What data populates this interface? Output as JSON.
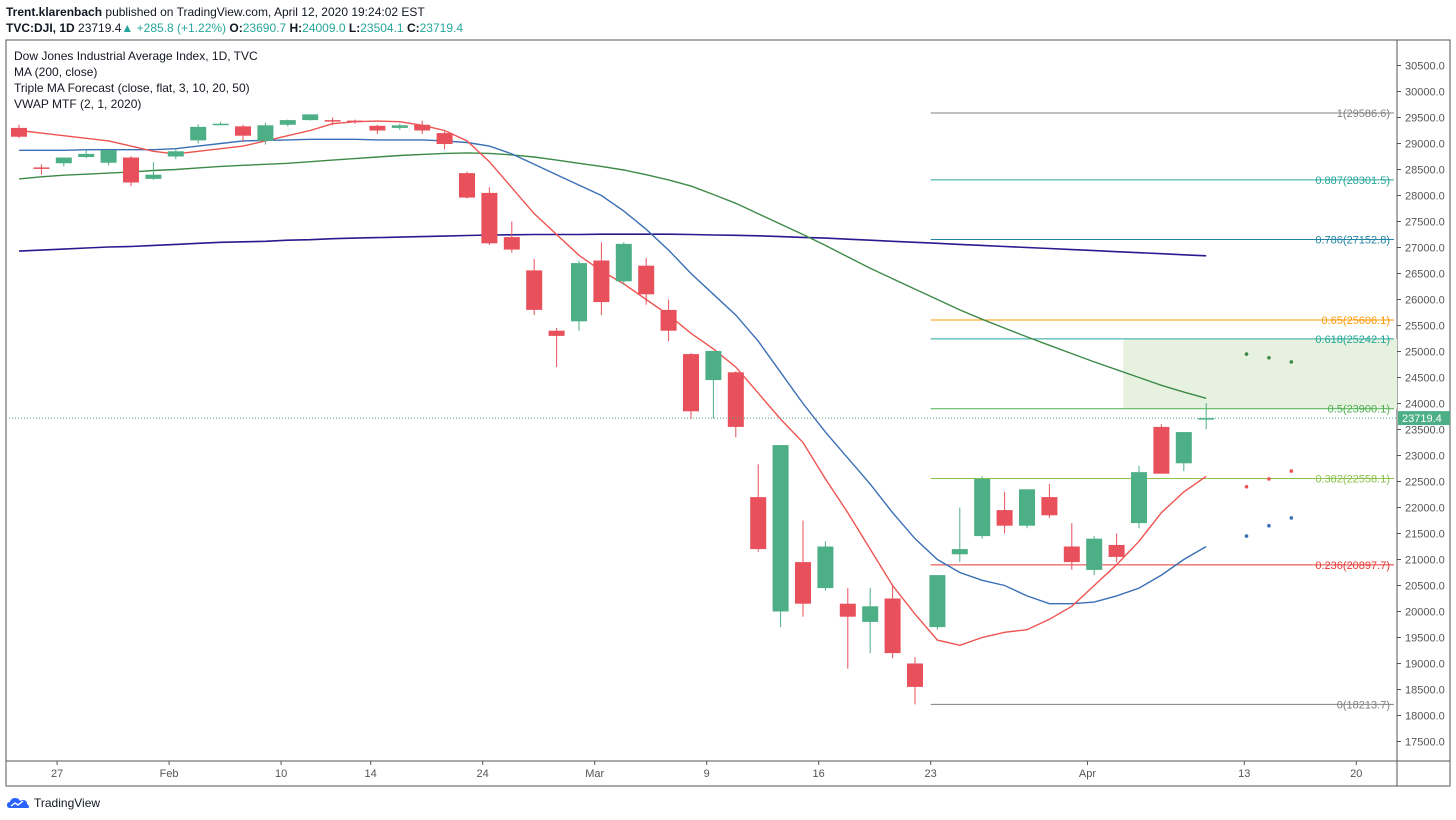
{
  "header": {
    "author": "Trent.klarenbach",
    "published": "published on TradingView.com, April 12, 2020 19:24:02 EST"
  },
  "subheader": {
    "symbol": "TVC:DJI, 1D",
    "last": "23719.4",
    "change": "+285.8 (+1.22%)",
    "o_label": "O:",
    "o": "23690.7",
    "h_label": "H:",
    "h": "24009.0",
    "l_label": "L:",
    "l": "23504.1",
    "c_label": "C:",
    "c": "23719.4"
  },
  "footer": {
    "brand": "TradingView"
  },
  "colors": {
    "up": "#4caf85",
    "down": "#e8505b",
    "ma200": "#2a1a8f",
    "ma_fast": "#ef5350",
    "ma_mid": "#3a6fb5",
    "ma_slow": "#3d8a47",
    "grid_border": "#555555",
    "text": "#555555",
    "last_price": "#4caf85"
  },
  "chart_data": {
    "type": "candlestick",
    "title": "Dow Jones Industrial Average Index, 1D, TVC",
    "indicators": [
      "MA (200, close)",
      "Triple MA Forecast (close, flat, 3, 10, 20, 50)",
      "VWAP MTF (2, 1, 2020)"
    ],
    "ylim": [
      17000,
      30900
    ],
    "y_ticks": [
      17500,
      18000,
      18500,
      19000,
      19500,
      20000,
      20500,
      21000,
      21500,
      22000,
      22500,
      23000,
      23500,
      24000,
      24500,
      25000,
      25500,
      26000,
      26500,
      27000,
      27500,
      28000,
      28500,
      29000,
      29500,
      30000,
      30500
    ],
    "x_ticks": [
      {
        "label": "27",
        "i": 1.7
      },
      {
        "label": "Feb",
        "i": 6.7
      },
      {
        "label": "10",
        "i": 11.7
      },
      {
        "label": "14",
        "i": 15.7
      },
      {
        "label": "24",
        "i": 20.7
      },
      {
        "label": "Mar",
        "i": 25.7
      },
      {
        "label": "9",
        "i": 30.7
      },
      {
        "label": "16",
        "i": 35.7
      },
      {
        "label": "23",
        "i": 40.7
      },
      {
        "label": "Apr",
        "i": 47.7
      },
      {
        "label": "13",
        "i": 54.7
      },
      {
        "label": "20",
        "i": 59.7
      }
    ],
    "candles": [
      {
        "o": 29300,
        "h": 29360,
        "l": 29100,
        "c": 29130
      },
      {
        "o": 28540,
        "h": 28600,
        "l": 28400,
        "c": 28530
      },
      {
        "o": 28620,
        "h": 28730,
        "l": 28560,
        "c": 28730
      },
      {
        "o": 28740,
        "h": 28880,
        "l": 28720,
        "c": 28800
      },
      {
        "o": 28630,
        "h": 28900,
        "l": 28580,
        "c": 28870
      },
      {
        "o": 28730,
        "h": 28760,
        "l": 28180,
        "c": 28250
      },
      {
        "o": 28320,
        "h": 28640,
        "l": 28300,
        "c": 28400
      },
      {
        "o": 28750,
        "h": 28900,
        "l": 28700,
        "c": 28850
      },
      {
        "o": 29060,
        "h": 29370,
        "l": 29000,
        "c": 29320
      },
      {
        "o": 29380,
        "h": 29420,
        "l": 29350,
        "c": 29380
      },
      {
        "o": 29330,
        "h": 29360,
        "l": 29030,
        "c": 29150
      },
      {
        "o": 29050,
        "h": 29400,
        "l": 28980,
        "c": 29350
      },
      {
        "o": 29360,
        "h": 29460,
        "l": 29330,
        "c": 29450
      },
      {
        "o": 29450,
        "h": 29560,
        "l": 29440,
        "c": 29560
      },
      {
        "o": 29450,
        "h": 29500,
        "l": 29350,
        "c": 29440
      },
      {
        "o": 29440,
        "h": 29460,
        "l": 29380,
        "c": 29420
      },
      {
        "o": 29340,
        "h": 29360,
        "l": 29180,
        "c": 29250
      },
      {
        "o": 29300,
        "h": 29380,
        "l": 29260,
        "c": 29350
      },
      {
        "o": 29360,
        "h": 29440,
        "l": 29180,
        "c": 29250
      },
      {
        "o": 29200,
        "h": 29230,
        "l": 28890,
        "c": 28990
      },
      {
        "o": 28430,
        "h": 28460,
        "l": 27940,
        "c": 27960
      },
      {
        "o": 28050,
        "h": 28160,
        "l": 27050,
        "c": 27080
      },
      {
        "o": 27200,
        "h": 27500,
        "l": 26900,
        "c": 26960
      },
      {
        "o": 26560,
        "h": 26780,
        "l": 25700,
        "c": 25800
      },
      {
        "o": 25400,
        "h": 25450,
        "l": 24700,
        "c": 25300
      },
      {
        "o": 25580,
        "h": 26750,
        "l": 25400,
        "c": 26700
      },
      {
        "o": 26750,
        "h": 27100,
        "l": 25700,
        "c": 25950
      },
      {
        "o": 26350,
        "h": 27100,
        "l": 26280,
        "c": 27070
      },
      {
        "o": 26650,
        "h": 26800,
        "l": 25900,
        "c": 26100
      },
      {
        "o": 25800,
        "h": 26000,
        "l": 25200,
        "c": 25400
      },
      {
        "o": 24950,
        "h": 24970,
        "l": 23700,
        "c": 23850
      },
      {
        "o": 24450,
        "h": 25000,
        "l": 23710,
        "c": 25010
      },
      {
        "o": 24600,
        "h": 24620,
        "l": 23350,
        "c": 23550
      },
      {
        "o": 22200,
        "h": 22830,
        "l": 21150,
        "c": 21200
      },
      {
        "o": 20000,
        "h": 23200,
        "l": 19700,
        "c": 23200
      },
      {
        "o": 20950,
        "h": 21750,
        "l": 19900,
        "c": 20150
      },
      {
        "o": 20450,
        "h": 21350,
        "l": 20400,
        "c": 21250
      },
      {
        "o": 20150,
        "h": 20450,
        "l": 18900,
        "c": 19900
      },
      {
        "o": 19800,
        "h": 20450,
        "l": 19200,
        "c": 20100
      },
      {
        "o": 20250,
        "h": 20500,
        "l": 19100,
        "c": 19200
      },
      {
        "o": 19000,
        "h": 19120,
        "l": 18213.7,
        "c": 18550
      },
      {
        "o": 19700,
        "h": 20700,
        "l": 19650,
        "c": 20700
      },
      {
        "o": 21100,
        "h": 22000,
        "l": 20950,
        "c": 21200
      },
      {
        "o": 21450,
        "h": 22600,
        "l": 21400,
        "c": 22550
      },
      {
        "o": 21950,
        "h": 22300,
        "l": 21500,
        "c": 21650
      },
      {
        "o": 21650,
        "h": 22350,
        "l": 21600,
        "c": 22350
      },
      {
        "o": 22200,
        "h": 22450,
        "l": 21800,
        "c": 21850
      },
      {
        "o": 21250,
        "h": 21700,
        "l": 20800,
        "c": 20950
      },
      {
        "o": 20800,
        "h": 21450,
        "l": 20700,
        "c": 21400
      },
      {
        "o": 21280,
        "h": 21500,
        "l": 20950,
        "c": 21050
      },
      {
        "o": 21700,
        "h": 22800,
        "l": 21600,
        "c": 22680
      },
      {
        "o": 23550,
        "h": 23600,
        "l": 22650,
        "c": 22650
      },
      {
        "o": 22850,
        "h": 23450,
        "l": 22700,
        "c": 23450
      },
      {
        "o": 23690.7,
        "h": 24009,
        "l": 23504.1,
        "c": 23719.4
      }
    ],
    "ma200": [
      26930,
      26950,
      26970,
      26990,
      27010,
      27020,
      27040,
      27060,
      27080,
      27100,
      27110,
      27120,
      27140,
      27150,
      27170,
      27180,
      27190,
      27200,
      27210,
      27220,
      27230,
      27240,
      27245,
      27250,
      27250,
      27250,
      27255,
      27255,
      27255,
      27255,
      27250,
      27240,
      27235,
      27225,
      27210,
      27195,
      27180,
      27160,
      27140,
      27120,
      27100,
      27080,
      27060,
      27040,
      27020,
      27000,
      26980,
      26960,
      26940,
      26920,
      26900,
      26880,
      26860,
      26840
    ],
    "ma_fast": [
      29250,
      29200,
      29150,
      29100,
      29050,
      28950,
      28850,
      28800,
      28850,
      28900,
      28950,
      29050,
      29150,
      29250,
      29380,
      29420,
      29430,
      29420,
      29350,
      29250,
      29050,
      28650,
      28150,
      27650,
      27250,
      26850,
      26550,
      26300,
      26000,
      25700,
      25350,
      25050,
      24700,
      24200,
      23700,
      23250,
      22550,
      21900,
      21200,
      20500,
      19950,
      19450,
      19350,
      19500,
      19600,
      19650,
      19850,
      20100,
      20500,
      20900,
      21350,
      21900,
      22300,
      22600
    ],
    "ma_mid": [
      28870,
      28870,
      28870,
      28880,
      28880,
      28880,
      28880,
      28900,
      28950,
      29000,
      29050,
      29060,
      29070,
      29080,
      29080,
      29080,
      29070,
      29070,
      29070,
      29050,
      29020,
      28950,
      28800,
      28600,
      28400,
      28200,
      28000,
      27700,
      27350,
      26950,
      26500,
      26100,
      25700,
      25200,
      24600,
      24000,
      23450,
      22950,
      22450,
      21900,
      21400,
      21000,
      20750,
      20600,
      20500,
      20300,
      20150,
      20150,
      20180,
      20300,
      20450,
      20700,
      21000,
      21250
    ],
    "ma_slow": [
      28320,
      28360,
      28390,
      28410,
      28430,
      28450,
      28480,
      28500,
      28530,
      28560,
      28580,
      28600,
      28620,
      28650,
      28680,
      28710,
      28740,
      28770,
      28790,
      28810,
      28820,
      28810,
      28780,
      28740,
      28680,
      28620,
      28560,
      28490,
      28400,
      28300,
      28180,
      28020,
      27850,
      27650,
      27450,
      27250,
      27040,
      26820,
      26600,
      26400,
      26200,
      26000,
      25800,
      25620,
      25450,
      25280,
      25120,
      24960,
      24800,
      24650,
      24500,
      24350,
      24220,
      24100
    ],
    "forecast": {
      "ma_slow": [
        [
          54.8,
          24950
        ],
        [
          55.8,
          24880
        ],
        [
          56.8,
          24800
        ]
      ],
      "ma_fast": [
        [
          54.8,
          22400
        ],
        [
          55.8,
          22550
        ],
        [
          56.8,
          22700
        ]
      ],
      "ma_mid": [
        [
          54.8,
          21450
        ],
        [
          55.8,
          21650
        ],
        [
          56.8,
          21800
        ]
      ]
    },
    "fib_levels": [
      {
        "ratio": "1",
        "value": 29586.6,
        "label": "1(29586.6)",
        "color": "#808080"
      },
      {
        "ratio": "0.887",
        "value": 28301.5,
        "label": "0.887(28301.5)",
        "color": "#26a69a"
      },
      {
        "ratio": "0.786",
        "value": 27152.8,
        "label": "0.786(27152.8)",
        "color": "#2185a5"
      },
      {
        "ratio": "0.65",
        "value": 25606.1,
        "label": "0.65(25606.1)",
        "color": "#ff9800"
      },
      {
        "ratio": "0.618",
        "value": 25242.1,
        "label": "0.618(25242.1)",
        "color": "#26a69a"
      },
      {
        "ratio": "0.5",
        "value": 23900.1,
        "label": "0.5(23900.1)",
        "color": "#4caf50"
      },
      {
        "ratio": "0.382",
        "value": 22558.1,
        "label": "0.382(22558.1)",
        "color": "#8bc34a"
      },
      {
        "ratio": "0.236",
        "value": 20897.7,
        "label": "0.236(20897.7)",
        "color": "#e53935"
      },
      {
        "ratio": "0",
        "value": 18213.7,
        "label": "0(18213.7)",
        "color": "#808080"
      }
    ],
    "zone": {
      "y_top": 25242.1,
      "y_bottom": 23900.1,
      "color": "#e6f2df"
    },
    "last_price": {
      "value": 23719.4,
      "label": "23719.4"
    }
  }
}
